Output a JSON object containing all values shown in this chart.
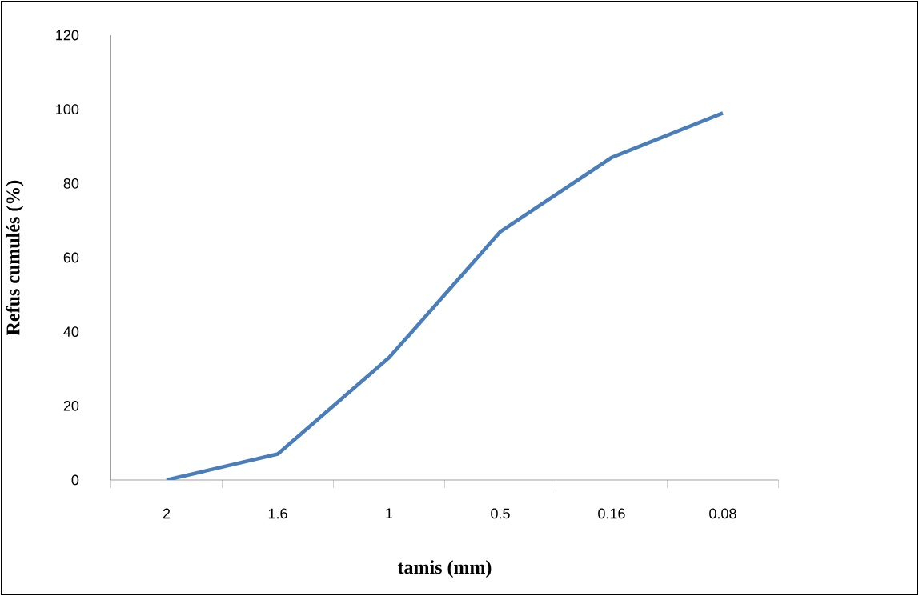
{
  "chart_data": {
    "type": "line",
    "xlabel": "tamis (mm)",
    "ylabel": "Refus cumulés (%)",
    "categories": [
      "2",
      "1.6",
      "1",
      "0.5",
      "0.16",
      "0.08"
    ],
    "series": [
      {
        "color": "#4a7ebb",
        "values": [
          0,
          7,
          33,
          67,
          87,
          99
        ]
      }
    ],
    "ylim": [
      0,
      120
    ],
    "yticks": [
      0,
      20,
      40,
      60,
      80,
      100,
      120
    ]
  }
}
